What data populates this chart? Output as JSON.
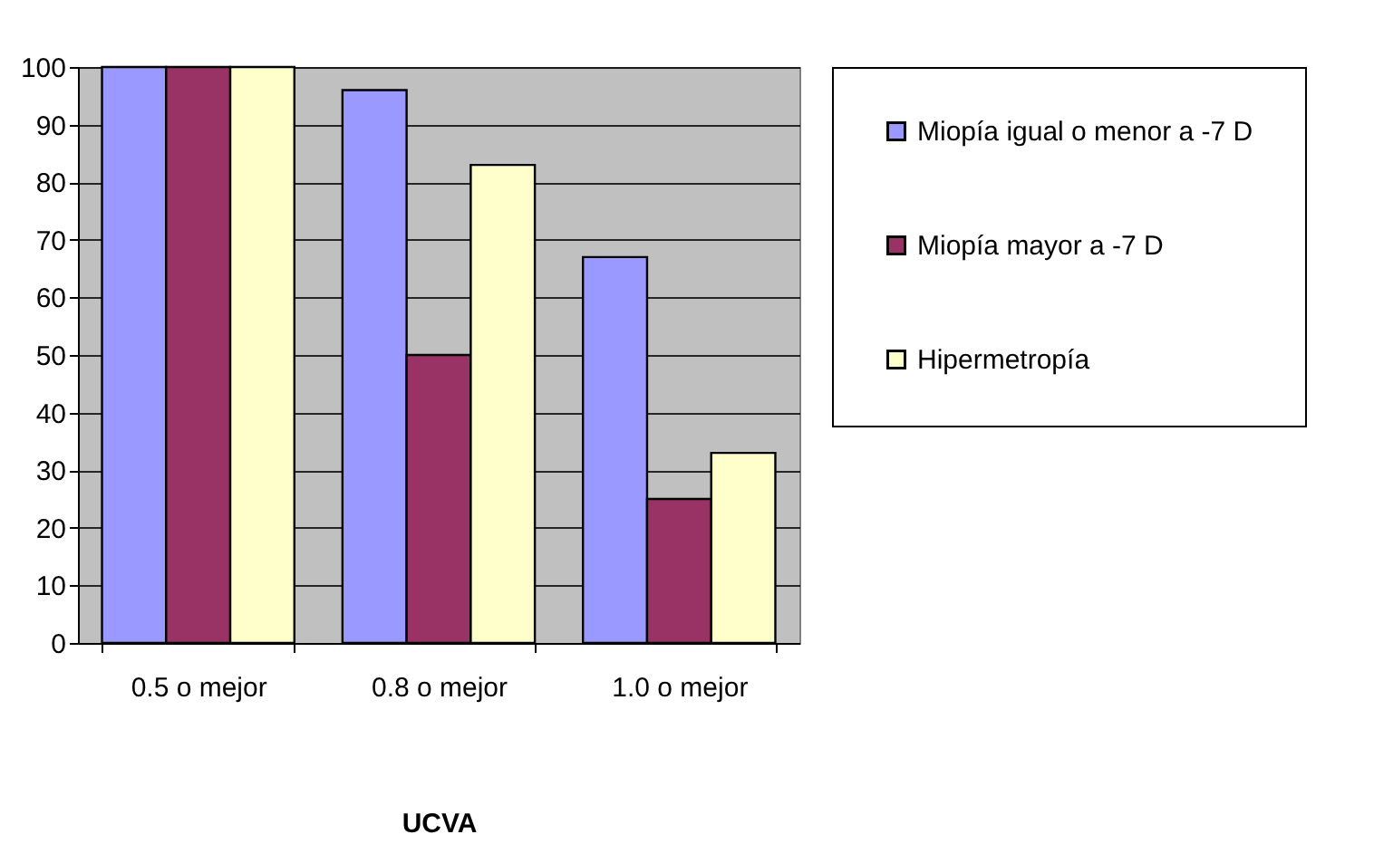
{
  "chart_data": {
    "type": "bar",
    "xlabel": "UCVA",
    "categories": [
      "0.5 o mejor",
      "0.8 o mejor",
      "1.0 o mejor"
    ],
    "series": [
      {
        "name": "Miopía igual o menor a -7 D",
        "color": "#9999ff",
        "values": [
          100,
          96,
          67
        ]
      },
      {
        "name": "Miopía mayor a -7 D",
        "color": "#993366",
        "values": [
          100,
          50,
          25
        ]
      },
      {
        "name": "Hipermetropía",
        "color": "#ffffcc",
        "values": [
          100,
          83,
          33
        ]
      }
    ],
    "ylim": [
      0,
      100
    ],
    "yticks": [
      0,
      10,
      20,
      30,
      40,
      50,
      60,
      70,
      80,
      90,
      100
    ],
    "grid": "y",
    "legend": "right"
  }
}
